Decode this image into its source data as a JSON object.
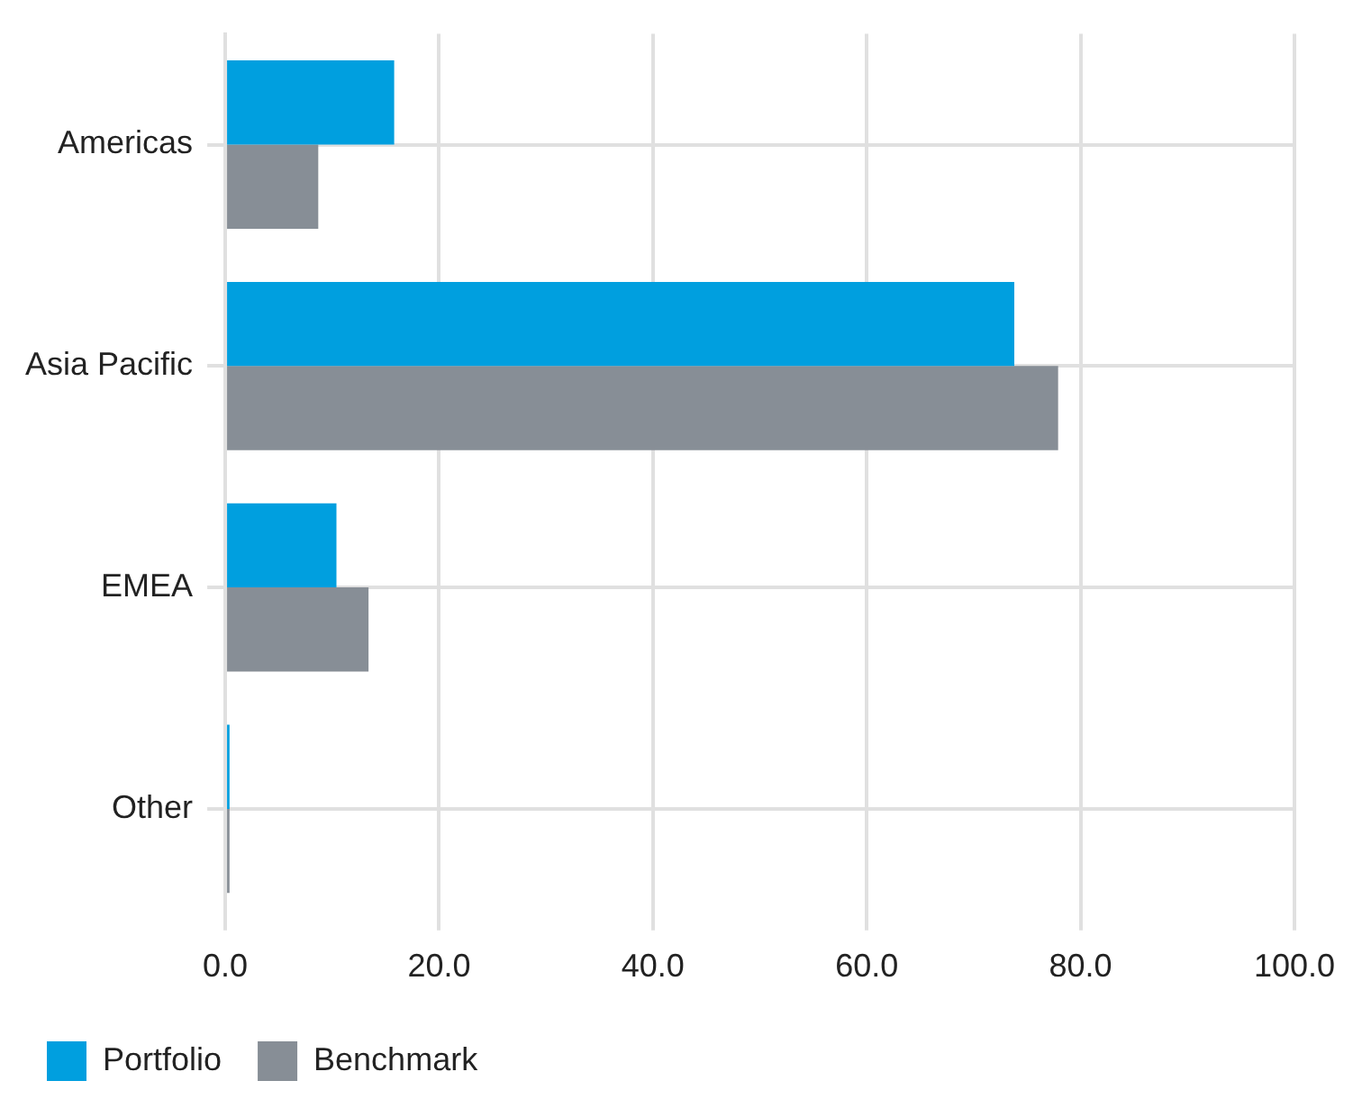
{
  "chart_data": {
    "type": "bar",
    "orientation": "horizontal",
    "categories": [
      "Americas",
      "Asia Pacific",
      "EMEA",
      "Other"
    ],
    "series": [
      {
        "name": "Portfolio",
        "color": "#009fdf",
        "values": [
          15.8,
          73.8,
          10.4,
          0.4
        ]
      },
      {
        "name": "Benchmark",
        "color": "#878e96",
        "values": [
          8.7,
          77.9,
          13.4,
          0.4
        ]
      }
    ],
    "xlim": [
      0,
      100
    ],
    "xticks": [
      {
        "value": 0,
        "label": "0.0"
      },
      {
        "value": 20,
        "label": "20.0"
      },
      {
        "value": 40,
        "label": "40.0"
      },
      {
        "value": 60,
        "label": "60.0"
      },
      {
        "value": 80,
        "label": "80.0"
      },
      {
        "value": 100,
        "label": "100.0"
      }
    ],
    "grid": true,
    "legend": "bottom left"
  }
}
